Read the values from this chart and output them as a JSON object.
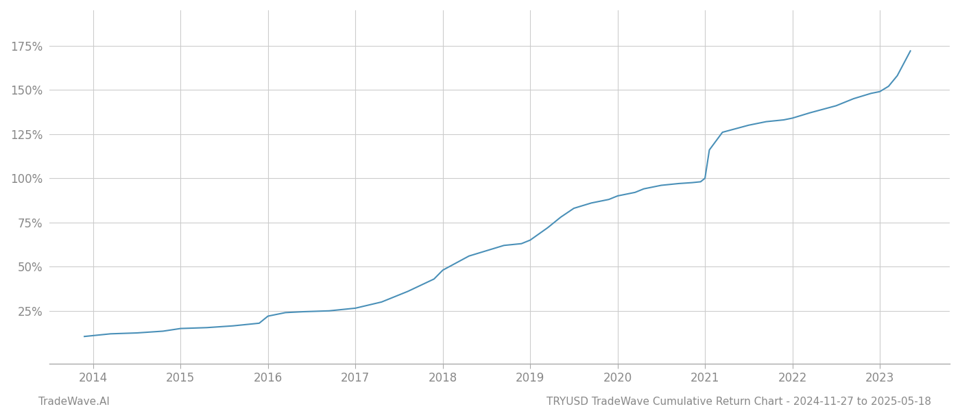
{
  "title": "TRYUSD TradeWave Cumulative Return Chart - 2024-11-27 to 2025-05-18",
  "left_label": "TradeWave.AI",
  "line_color": "#4a90b8",
  "background_color": "#ffffff",
  "grid_color": "#cccccc",
  "x_years": [
    2014,
    2015,
    2016,
    2017,
    2018,
    2019,
    2020,
    2021,
    2022,
    2023
  ],
  "xlim": [
    2013.5,
    2023.8
  ],
  "ylim": [
    -5,
    195
  ],
  "yticks": [
    25,
    50,
    75,
    100,
    125,
    150,
    175
  ],
  "data_x": [
    2013.9,
    2014.0,
    2014.2,
    2014.5,
    2014.8,
    2015.0,
    2015.3,
    2015.6,
    2015.9,
    2016.0,
    2016.1,
    2016.2,
    2016.4,
    2016.7,
    2017.0,
    2017.3,
    2017.6,
    2017.9,
    2018.0,
    2018.15,
    2018.3,
    2018.5,
    2018.7,
    2018.9,
    2019.0,
    2019.2,
    2019.35,
    2019.5,
    2019.7,
    2019.9,
    2020.0,
    2020.1,
    2020.2,
    2020.3,
    2020.5,
    2020.7,
    2020.85,
    2020.95,
    2021.0,
    2021.05,
    2021.2,
    2021.5,
    2021.7,
    2021.9,
    2022.0,
    2022.2,
    2022.5,
    2022.7,
    2022.9,
    2023.0,
    2023.1,
    2023.2,
    2023.35
  ],
  "data_y": [
    10.5,
    11,
    12,
    12.5,
    13.5,
    15,
    15.5,
    16.5,
    18,
    22,
    23,
    24,
    24.5,
    25,
    26.5,
    30,
    36,
    43,
    48,
    52,
    56,
    59,
    62,
    63,
    65,
    72,
    78,
    83,
    86,
    88,
    90,
    91,
    92,
    94,
    96,
    97,
    97.5,
    98,
    100,
    116,
    126,
    130,
    132,
    133,
    134,
    137,
    141,
    145,
    148,
    149,
    152,
    158,
    172
  ]
}
